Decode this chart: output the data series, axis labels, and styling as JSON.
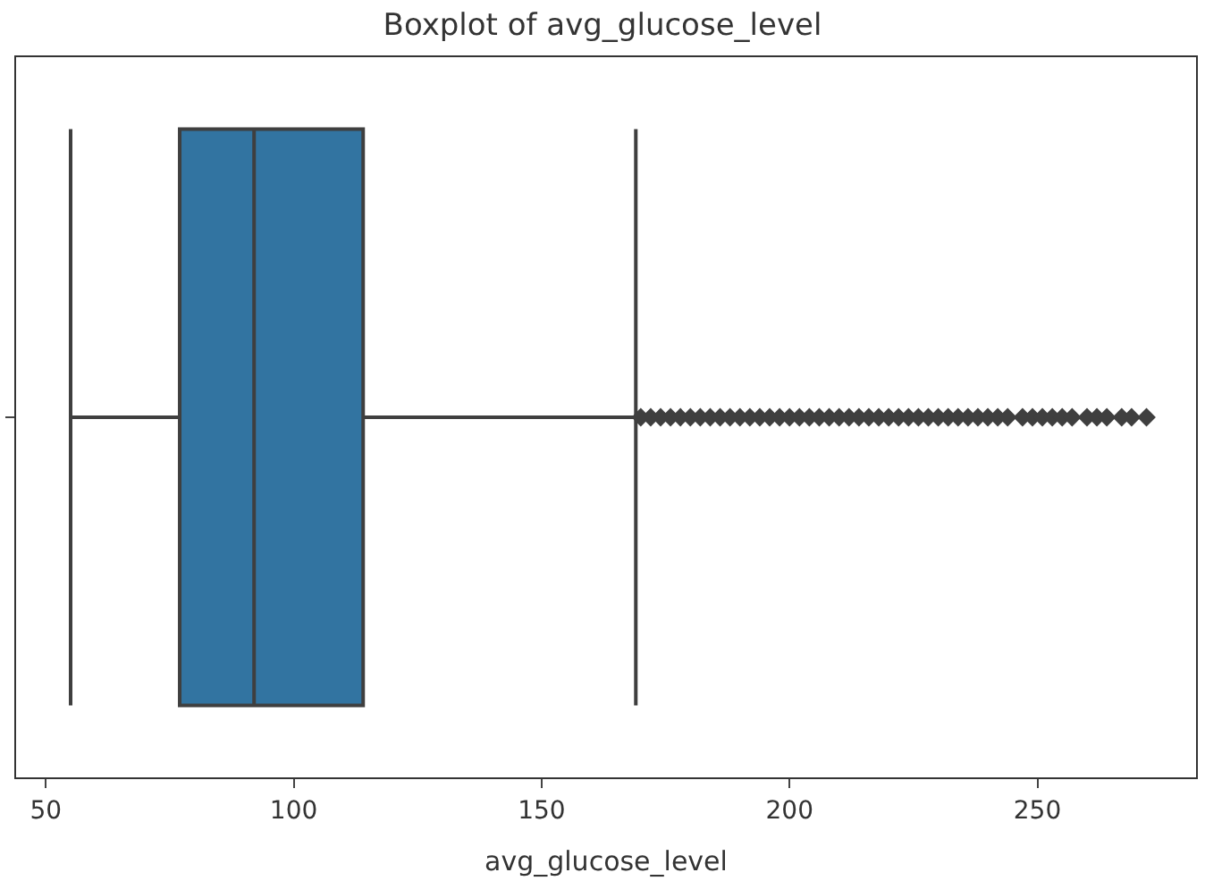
{
  "chart_data": {
    "type": "box",
    "title": "Boxplot of avg_glucose_level",
    "xlabel": "avg_glucose_level",
    "orientation": "horizontal",
    "categories": [
      null
    ],
    "boxes": [
      {
        "low": 55,
        "q1": 77,
        "median": 92,
        "q3": 114,
        "high": 169,
        "outliers": [
          170,
          172,
          174,
          176,
          178,
          180,
          182,
          184,
          186,
          188,
          190,
          192,
          194,
          196,
          198,
          200,
          202,
          204,
          206,
          208,
          210,
          212,
          214,
          216,
          218,
          220,
          222,
          224,
          226,
          228,
          230,
          232,
          234,
          236,
          238,
          240,
          242,
          244,
          247,
          249,
          251,
          253,
          255,
          257,
          260,
          262,
          264,
          267,
          269,
          272
        ]
      }
    ],
    "color": "#3274a1",
    "xlim": [
      44,
      282
    ],
    "xticks": [
      50,
      100,
      150,
      200,
      250
    ],
    "grid": false,
    "tick_labels": "x",
    "marker": "diamond"
  }
}
